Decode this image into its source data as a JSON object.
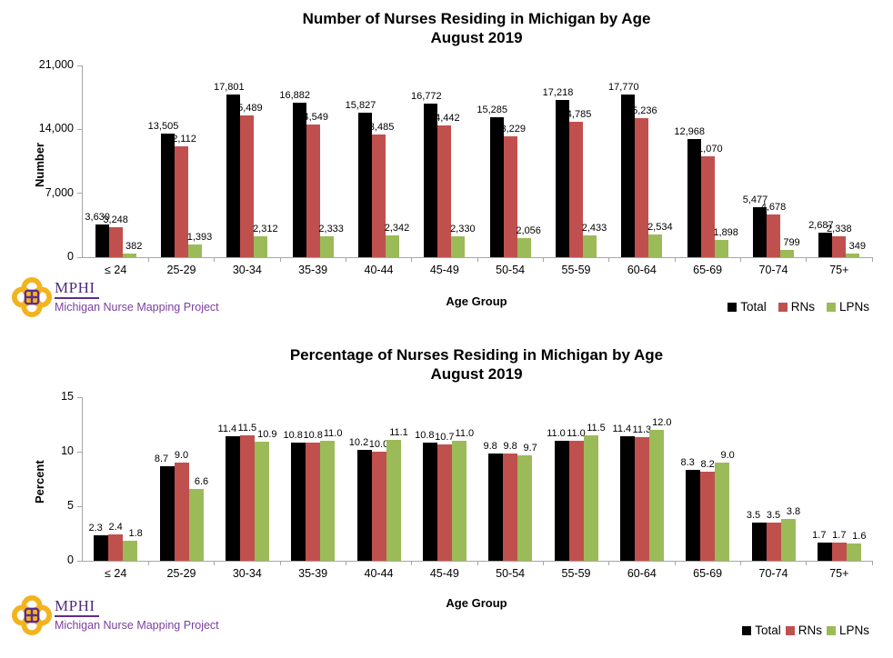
{
  "branding": {
    "org": "MPHI",
    "project": "Michigan Nurse Mapping Project",
    "logo_gold": "#F2B41E",
    "logo_purple": "#5C2D91",
    "text_purple": "#7B3FA0"
  },
  "chart_data": [
    {
      "type": "bar",
      "title": "Number of Nurses Residing in Michigan by Age",
      "subtitle": "August 2019",
      "xlabel": "Age Group",
      "ylabel": "Number",
      "ylim": [
        0,
        21000
      ],
      "yticks": [
        0,
        7000,
        14000,
        21000
      ],
      "ytick_labels": [
        "0",
        "7,000",
        "14,000",
        "21,000"
      ],
      "grid": false,
      "legend_position": "bottom-right",
      "categories": [
        "≤ 24",
        "25-29",
        "30-34",
        "35-39",
        "40-44",
        "45-49",
        "50-54",
        "55-59",
        "60-64",
        "65-69",
        "70-74",
        "75+"
      ],
      "series": [
        {
          "name": "Total",
          "color": "#000000",
          "values": [
            3630,
            13505,
            17801,
            16882,
            15827,
            16772,
            15285,
            17218,
            17770,
            12968,
            5477,
            2687
          ],
          "labels": [
            "3,630",
            "13,505",
            "17,801",
            "16,882",
            "15,827",
            "16,772",
            "15,285",
            "17,218",
            "17,770",
            "12,968",
            "5,477",
            "2,687"
          ]
        },
        {
          "name": "RNs",
          "color": "#C0504D",
          "values": [
            3248,
            12112,
            15489,
            14549,
            13485,
            14442,
            13229,
            14785,
            15236,
            11070,
            4678,
            2338
          ],
          "labels": [
            "3,248",
            "12,112",
            "15,489",
            "14,549",
            "13,485",
            "14,442",
            "13,229",
            "14,785",
            "15,236",
            "11,070",
            "4,678",
            "2,338"
          ]
        },
        {
          "name": "LPNs",
          "color": "#9BBB59",
          "values": [
            382,
            1393,
            2312,
            2333,
            2342,
            2330,
            2056,
            2433,
            2534,
            1898,
            799,
            349
          ],
          "labels": [
            "382",
            "1,393",
            "2,312",
            "2,333",
            "2,342",
            "2,330",
            "2,056",
            "2,433",
            "2,534",
            "1,898",
            "799",
            "349"
          ]
        }
      ]
    },
    {
      "type": "bar",
      "title": "Percentage of Nurses Residing in Michigan by Age",
      "subtitle": "August 2019",
      "xlabel": "Age Group",
      "ylabel": "Percent",
      "ylim": [
        0,
        15
      ],
      "yticks": [
        0,
        5,
        10,
        15
      ],
      "ytick_labels": [
        "0",
        "5",
        "10",
        "15"
      ],
      "grid": false,
      "legend_position": "bottom-right",
      "categories": [
        "≤ 24",
        "25-29",
        "30-34",
        "35-39",
        "40-44",
        "45-49",
        "50-54",
        "55-59",
        "60-64",
        "65-69",
        "70-74",
        "75+"
      ],
      "series": [
        {
          "name": "Total",
          "color": "#000000",
          "values": [
            2.3,
            8.7,
            11.4,
            10.8,
            10.2,
            10.8,
            9.8,
            11.0,
            11.4,
            8.3,
            3.5,
            1.7
          ],
          "labels": [
            "2.3",
            "8.7",
            "11.4",
            "10.8",
            "10.2",
            "10.8",
            "9.8",
            "11.0",
            "11.4",
            "8.3",
            "3.5",
            "1.7"
          ]
        },
        {
          "name": "RNs",
          "color": "#C0504D",
          "values": [
            2.4,
            9.0,
            11.5,
            10.8,
            10.0,
            10.7,
            9.8,
            11.0,
            11.3,
            8.2,
            3.5,
            1.7
          ],
          "labels": [
            "2.4",
            "9.0",
            "11.5",
            "10.8",
            "10.0",
            "10.7",
            "9.8",
            "11.0",
            "11.3",
            "8.2",
            "3.5",
            "1.7"
          ]
        },
        {
          "name": "LPNs",
          "color": "#9BBB59",
          "values": [
            1.8,
            6.6,
            10.9,
            11.0,
            11.1,
            11.0,
            9.7,
            11.5,
            12.0,
            9.0,
            3.8,
            1.6
          ],
          "labels": [
            "1.8",
            "6.6",
            "10.9",
            "11.0",
            "11.1",
            "11.0",
            "9.7",
            "11.5",
            "12.0",
            "9.0",
            "3.8",
            "1.6"
          ]
        }
      ]
    }
  ]
}
